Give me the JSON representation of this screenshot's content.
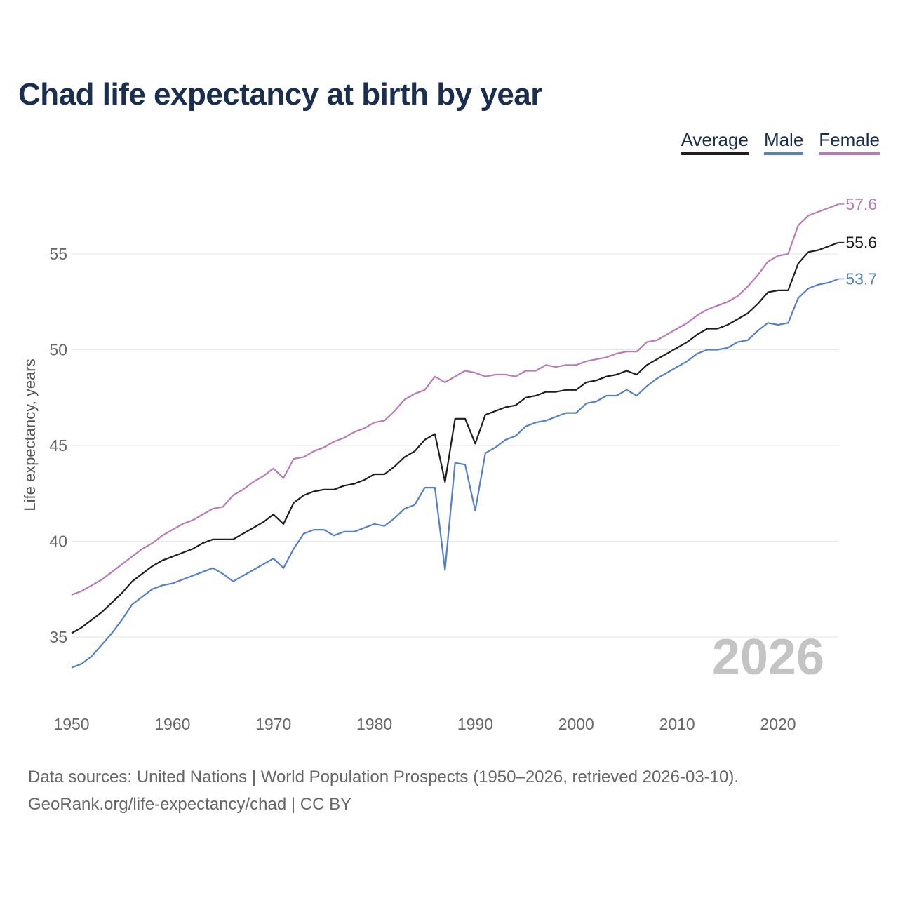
{
  "chart_data": {
    "type": "line",
    "title": "Chad life expectancy at birth by year",
    "xlabel": "",
    "ylabel": "Life expectancy, years",
    "xlim": [
      1950,
      2026
    ],
    "ylim": [
      32,
      59
    ],
    "x_ticks": [
      1950,
      1960,
      1970,
      1980,
      1990,
      2000,
      2010,
      2020
    ],
    "y_ticks": [
      35,
      40,
      45,
      50,
      55
    ],
    "grid": true,
    "legend_placement": "top-right",
    "year_label": "2026",
    "x_start": 1950,
    "series": [
      {
        "name": "Average",
        "color": "#1e1e1e",
        "end_label": "55.6",
        "values": [
          35.2,
          35.5,
          35.9,
          36.3,
          36.8,
          37.3,
          37.9,
          38.3,
          38.7,
          39.0,
          39.2,
          39.4,
          39.6,
          39.9,
          40.1,
          40.1,
          40.1,
          40.4,
          40.7,
          41.0,
          41.4,
          40.9,
          42.0,
          42.4,
          42.6,
          42.7,
          42.7,
          42.9,
          43.0,
          43.2,
          43.5,
          43.5,
          43.9,
          44.4,
          44.7,
          45.3,
          45.6,
          43.1,
          46.4,
          46.4,
          45.1,
          46.6,
          46.8,
          47.0,
          47.1,
          47.5,
          47.6,
          47.8,
          47.8,
          47.9,
          47.9,
          48.3,
          48.4,
          48.6,
          48.7,
          48.9,
          48.7,
          49.2,
          49.5,
          49.8,
          50.1,
          50.4,
          50.8,
          51.1,
          51.1,
          51.3,
          51.6,
          51.9,
          52.4,
          53.0,
          53.1,
          53.1,
          54.5,
          55.1,
          55.2,
          55.4,
          55.6
        ]
      },
      {
        "name": "Male",
        "color": "#5580c8",
        "end_label": "53.7",
        "values": [
          33.4,
          33.6,
          34.0,
          34.6,
          35.2,
          35.9,
          36.7,
          37.1,
          37.5,
          37.7,
          37.8,
          38.0,
          38.2,
          38.4,
          38.6,
          38.3,
          37.9,
          38.2,
          38.5,
          38.8,
          39.1,
          38.6,
          39.6,
          40.4,
          40.6,
          40.6,
          40.3,
          40.5,
          40.5,
          40.7,
          40.9,
          40.8,
          41.2,
          41.7,
          41.9,
          42.8,
          42.8,
          38.5,
          44.1,
          44.0,
          41.6,
          44.6,
          44.9,
          45.3,
          45.5,
          46.0,
          46.2,
          46.3,
          46.5,
          46.7,
          46.7,
          47.2,
          47.3,
          47.6,
          47.6,
          47.9,
          47.6,
          48.1,
          48.5,
          48.8,
          49.1,
          49.4,
          49.8,
          50.0,
          50.0,
          50.1,
          50.4,
          50.5,
          51.0,
          51.4,
          51.3,
          51.4,
          52.7,
          53.2,
          53.4,
          53.5,
          53.7
        ]
      },
      {
        "name": "Female",
        "color": "#b97ab8",
        "end_label": "57.6",
        "values": [
          37.2,
          37.4,
          37.7,
          38.0,
          38.4,
          38.8,
          39.2,
          39.6,
          39.9,
          40.3,
          40.6,
          40.9,
          41.1,
          41.4,
          41.7,
          41.8,
          42.4,
          42.7,
          43.1,
          43.4,
          43.8,
          43.3,
          44.3,
          44.4,
          44.7,
          44.9,
          45.2,
          45.4,
          45.7,
          45.9,
          46.2,
          46.3,
          46.8,
          47.4,
          47.7,
          47.9,
          48.6,
          48.3,
          48.6,
          48.9,
          48.8,
          48.6,
          48.7,
          48.7,
          48.6,
          48.9,
          48.9,
          49.2,
          49.1,
          49.2,
          49.2,
          49.4,
          49.5,
          49.6,
          49.8,
          49.9,
          49.9,
          50.4,
          50.5,
          50.8,
          51.1,
          51.4,
          51.8,
          52.1,
          52.3,
          52.5,
          52.8,
          53.3,
          53.9,
          54.6,
          54.9,
          55.0,
          56.5,
          57.0,
          57.2,
          57.4,
          57.6
        ]
      }
    ]
  },
  "legend": {
    "average": "Average",
    "male": "Male",
    "female": "Female"
  },
  "source": {
    "line1": "Data sources: United Nations | World Population Prospects (1950–2026, retrieved 2026-03-10).",
    "line2": "GeoRank.org/life-expectancy/chad | CC BY"
  }
}
